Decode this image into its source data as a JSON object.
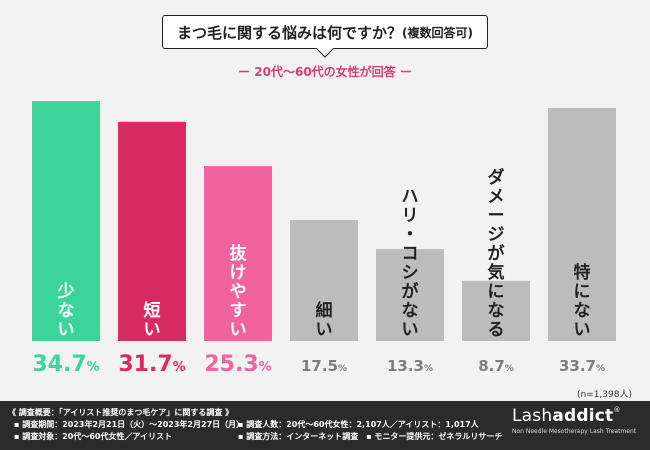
{
  "title": {
    "main": "まつ毛に関する悩みは何ですか？",
    "note": "(複数回答可)"
  },
  "subtitle": "ー 20代〜60代の女性が回答 ー",
  "sample_size": "(n=1,398人)",
  "colors": {
    "green": "#3dd49a",
    "crimson": "#d92b63",
    "pink": "#f0639e",
    "gray": "#bcbcbc",
    "gray_text": "#7d7d7d"
  },
  "chart_data": {
    "type": "bar",
    "title": "まつ毛に関する悩みは何ですか？(複数回答可)",
    "unit": "%",
    "ylim": [
      0,
      35
    ],
    "categories": [
      "少ない",
      "短い",
      "抜けやすい",
      "細い",
      "ハリ・コシがない",
      "ダメージが気になる",
      "特にない"
    ],
    "values": [
      34.7,
      31.7,
      25.3,
      17.5,
      13.3,
      8.7,
      33.7
    ],
    "value_labels": [
      "34.7%",
      "31.7%",
      "25.3%",
      "17.5%",
      "13.3%",
      "8.7%",
      "33.7%"
    ],
    "bar_colors": [
      "#3dd49a",
      "#d92b63",
      "#f0639e",
      "#bcbcbc",
      "#bcbcbc",
      "#bcbcbc",
      "#bcbcbc"
    ],
    "label_colors": [
      "#3dd49a",
      "#d92b63",
      "#f0639e",
      "#7d7d7d",
      "#7d7d7d",
      "#7d7d7d",
      "#7d7d7d"
    ],
    "category_text_colors": [
      "#ffffff",
      "#ffffff",
      "#ffffff",
      "#222222",
      "#222222",
      "#222222",
      "#222222"
    ]
  },
  "footer": {
    "heading": "《 調査概要：「アイリスト推奨のまつ毛ケア」に関する調査 》",
    "period": "▪ 調査期間：2023年2月21日（火）〜2023年2月27日（月）",
    "target": "▪ 調査対象：20代〜60代女性／アイリスト",
    "respondents": "▪ 調査人数：20代〜60代女性：2,107人／アイリスト：1,017人",
    "method": "▪ 調査方法：インターネット調査　▪ モニター提供元：ゼネラルリサーチ",
    "logo_light": "Lash",
    "logo_bold": "addict",
    "logo_reg": "®",
    "logo_tagline": "Non Needle Mesotherapy Lash Treatment"
  }
}
